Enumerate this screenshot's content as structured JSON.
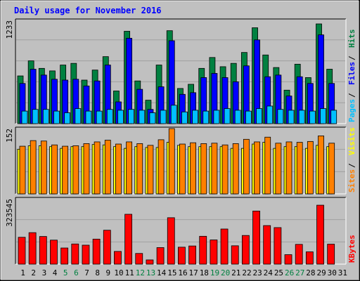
{
  "chart_data": {
    "type": "bar",
    "title": "Daily usage for November 2016",
    "days": [
      "1",
      "2",
      "3",
      "4",
      "5",
      "6",
      "7",
      "8",
      "9",
      "10",
      "11",
      "12",
      "13",
      "14",
      "15",
      "16",
      "17",
      "18",
      "19",
      "20",
      "21",
      "22",
      "23",
      "24",
      "25",
      "26",
      "27",
      "28",
      "29",
      "30",
      "31"
    ],
    "weekend_days": [
      "5",
      "6",
      "12",
      "13",
      "19",
      "20",
      "26",
      "27"
    ],
    "panels": [
      {
        "id": "top",
        "max_label": "1233",
        "ylim": [
          0,
          1233
        ],
        "axis_labels": [
          {
            "text": "Pages",
            "color": "#00c0ff"
          },
          {
            "text": "Files",
            "color": "#0000ff"
          },
          {
            "text": "Hits",
            "color": "#008040"
          }
        ],
        "series": [
          {
            "name": "Hits",
            "color": "#008040",
            "values": [
              570,
              750,
              660,
              630,
              700,
              720,
              520,
              640,
              800,
              390,
              1103,
              510,
              280,
              700,
              1110,
              420,
              470,
              660,
              790,
              680,
              720,
              850,
              1145,
              820,
              670,
              400,
              710,
              550,
              1191,
              650,
              null
            ]
          },
          {
            "name": "Files",
            "color": "#0000ff",
            "values": [
              480,
              650,
              580,
              530,
              520,
              530,
              450,
              510,
              700,
              260,
              1020,
              410,
              170,
              440,
              990,
              350,
              370,
              550,
              600,
              550,
              500,
              690,
              1000,
              560,
              580,
              330,
              560,
              480,
              1060,
              480,
              null
            ]
          },
          {
            "name": "Pages",
            "color": "#00c0ff",
            "values": [
              150,
              170,
              170,
              150,
              130,
              180,
              150,
              150,
              170,
              160,
              170,
              160,
              130,
              160,
              220,
              140,
              160,
              150,
              160,
              180,
              160,
              150,
              180,
              210,
              170,
              160,
              160,
              150,
              180,
              160,
              null
            ]
          }
        ]
      },
      {
        "id": "middle",
        "max_label": "152",
        "ylim": [
          0,
          152
        ],
        "axis_labels": [
          {
            "text": "Sites",
            "color": "#ff8000"
          },
          {
            "text": "Visits",
            "color": "#ffff00"
          }
        ],
        "series": [
          {
            "name": "Visits",
            "color": "#ffff00",
            "values": [
              104,
              112,
              112,
              110,
              106,
              110,
              110,
              115,
              114,
              110,
              106,
              110,
              108,
              108,
              120,
              113,
              110,
              110,
              110,
              110,
              106,
              106,
              116,
              120,
              106,
              110,
              110,
              106,
              113,
              110,
              null
            ]
          },
          {
            "name": "Sites",
            "color": "#ff8000",
            "values": [
              111,
              124,
              123,
              114,
              111,
              112,
              117,
              121,
              125,
              116,
              121,
              117,
              113,
              126,
              152,
              116,
              119,
              117,
              118,
              114,
              117,
              127,
              121,
              132,
              118,
              121,
              120,
              122,
              135,
              118,
              null
            ]
          }
        ]
      },
      {
        "id": "bottom",
        "max_label": "323545",
        "ylim": [
          0,
          323545
        ],
        "axis_labels": [
          {
            "text": "KBytes",
            "color": "#ff0000"
          }
        ],
        "series": [
          {
            "name": "KBytes",
            "color": "#ff0000",
            "values": [
              133000,
              156000,
              137000,
              119000,
              80000,
              100000,
              94000,
              124000,
              168000,
              63000,
              247000,
              53000,
              21000,
              82000,
              230000,
              84000,
              90000,
              138000,
              120000,
              174000,
              91000,
              142000,
              263000,
              191000,
              181000,
              47000,
              98000,
              61000,
              292000,
              99000,
              null
            ]
          }
        ]
      }
    ]
  },
  "colors": {
    "background": "#c0c0c0",
    "panel_bg": "#c0c0c0",
    "title": "#0000ff",
    "weekday_label": "#000000",
    "weekend_label": "#008040",
    "border": "#000000"
  }
}
